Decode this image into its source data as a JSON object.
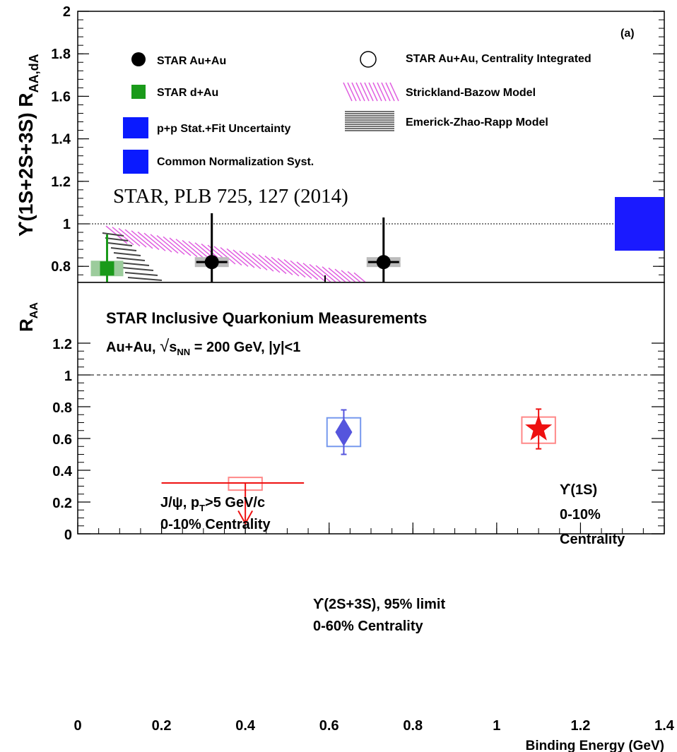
{
  "chart_data": [
    {
      "panel": "top",
      "type": "scatter",
      "ylabel_main": "ϒ(1S+2S+3S) R",
      "ylabel_sub": "AA,dA",
      "panel_tag": "(a)",
      "citation": "STAR, PLB 725, 127 (2014)",
      "ylim": [
        0.72,
        2.0
      ],
      "y_ticks": [
        0.8,
        1,
        1.2,
        1.4,
        1.6,
        1.8,
        2
      ],
      "y_tick_labels": [
        "0.8",
        "1",
        "1.2",
        "1.4",
        "1.6",
        "1.8",
        "2"
      ],
      "reference_line": 1,
      "legend": [
        {
          "label": "STAR Au+Au",
          "marker": "filled-circle",
          "color": "#000000"
        },
        {
          "label": "STAR d+Au",
          "marker": "filled-square",
          "color": "#1a9a1a"
        },
        {
          "label": "p+p Stat.+Fit Uncertainty",
          "marker": "box",
          "color": "#0a1aff"
        },
        {
          "label": "Common Normalization Syst.",
          "marker": "box",
          "color": "#0a1aff"
        },
        {
          "label": "STAR Au+Au, Centrality Integrated",
          "marker": "open-circle",
          "color": "#000000"
        },
        {
          "label": "Strickland-Bazow Model",
          "marker": "hatch",
          "color": "#e060e0"
        },
        {
          "label": "Emerick-Zhao-Rapp Model",
          "marker": "hatch",
          "color": "#555555"
        }
      ],
      "points": [
        {
          "series": "STAR d+Au",
          "x": 0.07,
          "y": 0.79,
          "yerr_low": 0.79,
          "yerr_high": 0.16
        },
        {
          "series": "STAR Au+Au",
          "x": 0.32,
          "y": 0.82,
          "yerr_low": 0.82,
          "yerr_high": 0.23
        },
        {
          "series": "STAR Au+Au",
          "x": 0.73,
          "y": 0.82,
          "yerr_low": 0.82,
          "yerr_high": 0.21
        }
      ]
    },
    {
      "panel": "bottom",
      "type": "scatter",
      "ylabel": "R",
      "ylabel_sub": "AA",
      "xlabel": "Binding Energy (GeV)",
      "xlim": [
        0,
        1.4
      ],
      "ylim": [
        0,
        1.25
      ],
      "x_ticks": [
        0,
        0.2,
        0.4,
        0.6,
        0.8,
        1,
        1.2,
        1.4
      ],
      "x_tick_labels": [
        "0",
        "0.2",
        "0.4",
        "0.6",
        "0.8",
        "1",
        "1.2",
        "1.4"
      ],
      "y_ticks": [
        0,
        0.2,
        0.4,
        0.6,
        0.8,
        1,
        1.2
      ],
      "y_tick_labels": [
        "0",
        "0.2",
        "0.4",
        "0.6",
        "0.8",
        "1",
        "1.2"
      ],
      "reference_line": 1,
      "title": "STAR Inclusive Quarkonium Measurements",
      "subtitle": {
        "pre": "Au+Au, ",
        "sqrt": "√",
        "s": "s",
        "s_sub": "NN",
        "post": " = 200 GeV, |y|<1"
      },
      "points": [
        {
          "series": "J/ψ",
          "label_lines": [
            "J/ψ, p",
            "0-10% Centrality"
          ],
          "label_sub": "T",
          "label_suffix": ">5 GeV/c",
          "marker": "diamond",
          "color": "#5555dd",
          "x": 0.635,
          "y": 0.64,
          "stat_low": 0.5,
          "stat_high": 0.78,
          "sys_low": 0.55,
          "sys_high": 0.73,
          "sys_xhalf": 0.04
        },
        {
          "series": "ϒ(1S)",
          "label_lines": [
            "ϒ(1S)",
            "0-10%",
            "Centrality"
          ],
          "marker": "star",
          "color": "#ee1111",
          "x": 1.1,
          "y": 0.66,
          "stat_low": 0.535,
          "stat_high": 0.785,
          "sys_low": 0.57,
          "sys_high": 0.735,
          "sys_xhalf": 0.04
        },
        {
          "series": "ϒ(2S+3S)",
          "label_lines": [
            "ϒ(2S+3S), 95% limit",
            "0-60% Centrality"
          ],
          "marker": "upper-limit",
          "color": "#ee1111",
          "x": 0.4,
          "y": 0.32,
          "x_low": 0.2,
          "x_high": 0.54,
          "sys_low": 0.275,
          "sys_high": 0.355,
          "sys_xhalf": 0.04,
          "arrow_to": 0.065
        }
      ]
    }
  ]
}
